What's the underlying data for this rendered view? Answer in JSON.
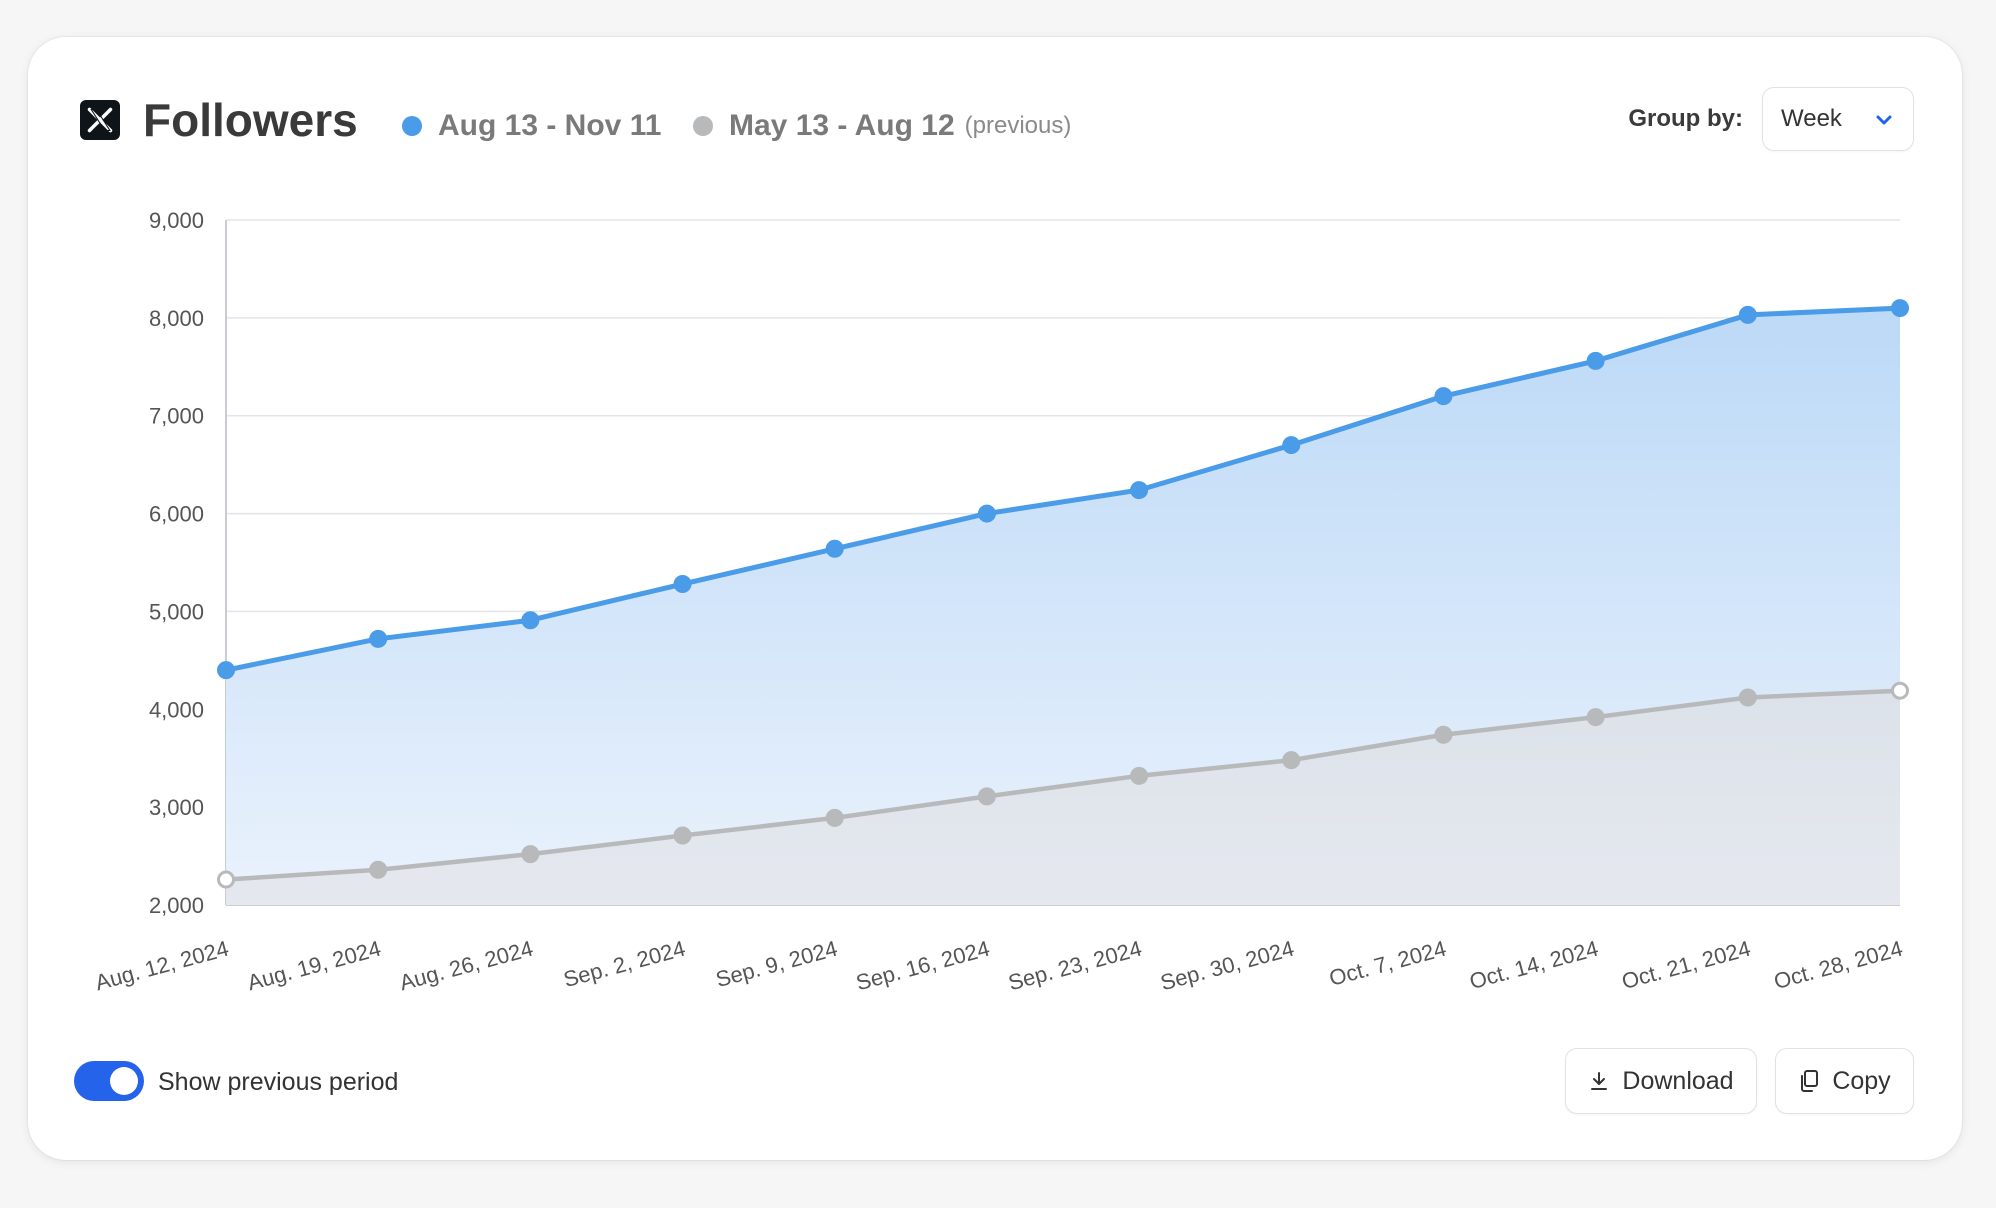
{
  "header": {
    "title": "Followers",
    "legend": {
      "current": {
        "label": "Aug 13 - Nov 11",
        "color": "#4a9be8"
      },
      "previous": {
        "label": "May 13 - Aug 12",
        "note": "(previous)",
        "color": "#b8b9bb"
      }
    },
    "group_by": {
      "label": "Group by:",
      "value": "Week"
    }
  },
  "footer": {
    "toggle_label": "Show previous period",
    "toggle_on": true,
    "download_label": "Download",
    "copy_label": "Copy"
  },
  "icons": {
    "logo": "x-logo-icon",
    "dropdown": "chevron-down-icon",
    "download": "download-icon",
    "copy": "copy-icon"
  },
  "colors": {
    "accent": "#2563eb",
    "current_series": "#4a9be8",
    "previous_series": "#b8b9bb"
  },
  "chart_data": {
    "type": "area",
    "categories": [
      "Aug. 12, 2024",
      "Aug. 19, 2024",
      "Aug. 26, 2024",
      "Sep. 2, 2024",
      "Sep. 9, 2024",
      "Sep. 16, 2024",
      "Sep. 23, 2024",
      "Sep. 30, 2024",
      "Oct. 7, 2024",
      "Oct. 14, 2024",
      "Oct. 21, 2024",
      "Oct. 28, 2024"
    ],
    "series": [
      {
        "name": "Aug 13 - Nov 11",
        "values": [
          4400,
          4720,
          4910,
          5280,
          5640,
          6000,
          6240,
          6700,
          7200,
          7560,
          8030,
          8100
        ]
      },
      {
        "name": "May 13 - Aug 12",
        "values": [
          2260,
          2360,
          2520,
          2710,
          2890,
          3110,
          3320,
          3480,
          3740,
          3920,
          4120,
          4190
        ]
      }
    ],
    "yticks": [
      "2,000",
      "3,000",
      "4,000",
      "5,000",
      "6,000",
      "7,000",
      "8,000",
      "9,000"
    ],
    "ylim": [
      2000,
      9000
    ],
    "grid": true
  }
}
